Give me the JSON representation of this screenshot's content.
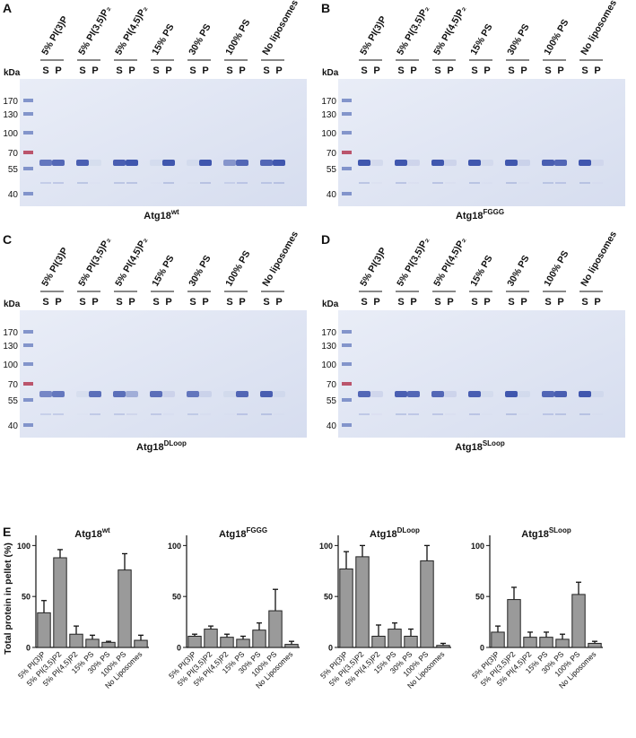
{
  "gels": [
    {
      "letter": "A",
      "lane_groups": [
        "5% PI(3)P",
        "5% PI(3,5)P₂",
        "5% PI(4,5)P₂",
        "15% PS",
        "30% PS",
        "100% PS",
        "No liposomes"
      ],
      "lanes": [
        "S",
        "P",
        "S",
        "P",
        "S",
        "P",
        "S",
        "P",
        "S",
        "P",
        "S",
        "P",
        "S",
        "P"
      ],
      "kda_label": "kDa",
      "markers": [
        170,
        130,
        100,
        70,
        55,
        40
      ],
      "caption": "Atg18",
      "caption_superscript": "wt"
    },
    {
      "letter": "B",
      "lane_groups": [
        "5% PI(3)P",
        "5% PI(3,5)P₂",
        "5% PI(4,5)P₂",
        "15% PS",
        "30% PS",
        "100% PS",
        "No liposomes"
      ],
      "lanes": [
        "S",
        "P",
        "S",
        "P",
        "S",
        "P",
        "S",
        "P",
        "S",
        "P",
        "S",
        "P",
        "S",
        "P"
      ],
      "kda_label": "kDa",
      "markers": [
        170,
        130,
        100,
        70,
        55,
        40
      ],
      "caption": "Atg18",
      "caption_superscript": "FGGG"
    },
    {
      "letter": "C",
      "lane_groups": [
        "5% PI(3)P",
        "5% PI(3,5)P₂",
        "5% PI(4,5)P₂",
        "15% PS",
        "30% PS",
        "100% PS",
        "No liposomes"
      ],
      "lanes": [
        "S",
        "P",
        "S",
        "P",
        "S",
        "P",
        "S",
        "P",
        "S",
        "P",
        "S",
        "P",
        "S",
        "P"
      ],
      "kda_label": "kDa",
      "markers": [
        170,
        130,
        100,
        70,
        55,
        40
      ],
      "caption": "Atg18",
      "caption_superscript": "DLoop"
    },
    {
      "letter": "D",
      "lane_groups": [
        "5% PI(3)P",
        "5% PI(3,5)P₂",
        "5% PI(4,5)P₂",
        "15% PS",
        "30% PS",
        "100% PS",
        "No liposomes"
      ],
      "lanes": [
        "S",
        "P",
        "S",
        "P",
        "S",
        "P",
        "S",
        "P",
        "S",
        "P",
        "S",
        "P",
        "S",
        "P"
      ],
      "kda_label": "kDa",
      "markers": [
        170,
        130,
        100,
        70,
        55,
        40
      ],
      "caption": "Atg18",
      "caption_superscript": "SLoop"
    }
  ],
  "panel_e_letter": "E",
  "chart_data": [
    {
      "type": "bar",
      "title": "Atg18",
      "title_superscript": "wt",
      "y_label": "Total protein in pellet (%)",
      "categories": [
        "5% PI(3)P",
        "5% PI(3,5)P2",
        "5% PI(4,5)P2",
        "15% PS",
        "30% PS",
        "100% PS",
        "No Liposomes"
      ],
      "values": [
        34,
        88,
        13,
        8,
        5,
        76,
        7
      ],
      "errors": [
        12,
        8,
        8,
        4,
        1,
        16,
        5
      ],
      "color": "#9a9a9a",
      "ylim": [
        0,
        110
      ],
      "yticks": [
        0,
        50,
        100
      ]
    },
    {
      "type": "bar",
      "title": "Atg18",
      "title_superscript": "FGGG",
      "categories": [
        "5% PI(3)P",
        "5% PI(3,5)P2",
        "5% PI(4,5)P2",
        "15% PS",
        "30% PS",
        "100% PS",
        "No Liposomes"
      ],
      "values": [
        11,
        18,
        10,
        8,
        17,
        36,
        3
      ],
      "errors": [
        2,
        3,
        3,
        3,
        7,
        21,
        3
      ],
      "color": "#9a9a9a",
      "ylim": [
        0,
        110
      ],
      "yticks": [
        0,
        50,
        100
      ]
    },
    {
      "type": "bar",
      "title": "Atg18",
      "title_superscript": "DLoop",
      "categories": [
        "5% PI(3)P",
        "5% PI(3,5)P2",
        "5% PI(4,5)P2",
        "15% PS",
        "30% PS",
        "100% PS",
        "No Liposomes"
      ],
      "values": [
        77,
        89,
        11,
        18,
        11,
        85,
        2
      ],
      "errors": [
        17,
        11,
        11,
        6,
        7,
        15,
        2
      ],
      "color": "#9a9a9a",
      "ylim": [
        0,
        110
      ],
      "yticks": [
        0,
        50,
        100
      ]
    },
    {
      "type": "bar",
      "title": "Atg18",
      "title_superscript": "SLoop",
      "categories": [
        "5% PI(3)P",
        "5% PI(3,5)P2",
        "5% PI(4,5)P2",
        "15% PS",
        "30% PS",
        "100% PS",
        "No Liposomes"
      ],
      "values": [
        15,
        47,
        10,
        10,
        8,
        52,
        4
      ],
      "errors": [
        6,
        12,
        5,
        5,
        5,
        12,
        2
      ],
      "color": "#9a9a9a",
      "ylim": [
        0,
        110
      ],
      "yticks": [
        0,
        50,
        100
      ]
    }
  ]
}
